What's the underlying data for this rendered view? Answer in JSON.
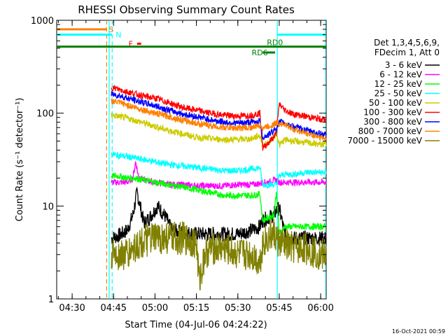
{
  "chart_data": {
    "type": "line",
    "title": "RHESSI Observing Summary Count Rates",
    "xlabel": "Start Time (04-Jul-06 04:24:22)",
    "ylabel": "Count Rate (s⁻¹ detector⁻¹)",
    "xlim_minutes": [
      264.4,
      362.0
    ],
    "x_ticks": [
      {
        "label": "04:30",
        "value": 270
      },
      {
        "label": "04:45",
        "value": 285
      },
      {
        "label": "05:00",
        "value": 300
      },
      {
        "label": "05:15",
        "value": 315
      },
      {
        "label": "05:30",
        "value": 330
      },
      {
        "label": "05:45",
        "value": 345
      },
      {
        "label": "06:00",
        "value": 360
      }
    ],
    "ylim": [
      1,
      1000
    ],
    "yscale": "log",
    "y_ticks": [
      {
        "label": "1",
        "value": 1
      },
      {
        "label": "10",
        "value": 10
      },
      {
        "label": "100",
        "value": 100
      },
      {
        "label": "1000",
        "value": 1000
      }
    ],
    "legend_header": [
      "Det 1,3,4,5,6,9,",
      "FDecim 1, Att 0"
    ],
    "legend_position": "right",
    "series": [
      {
        "name": "3 - 6 keV",
        "color": "#000000",
        "x": [
          284.2,
          287,
          290,
          292,
          293.5,
          295,
          296,
          298,
          301,
          304,
          306,
          310,
          315,
          320,
          325,
          330,
          335,
          338,
          339,
          341,
          343,
          344,
          345,
          347,
          350,
          355,
          360,
          362
        ],
        "y": [
          4.5,
          4.8,
          5.5,
          8,
          14,
          9,
          6.5,
          7.5,
          10,
          7.5,
          5.5,
          5.2,
          5,
          5,
          5,
          5,
          5.5,
          6,
          7,
          7.5,
          8,
          9,
          9.5,
          5,
          4.5,
          4.5,
          4.5,
          4.5
        ]
      },
      {
        "name": "6 - 12 keV",
        "color": "#ff00ff",
        "x": [
          284.2,
          287,
          290,
          292,
          293,
          294,
          296,
          300,
          305,
          310,
          315,
          320,
          325,
          330,
          335,
          338,
          339,
          341,
          343,
          344,
          345,
          347,
          350,
          355,
          360,
          362
        ],
        "y": [
          18,
          18,
          18,
          20,
          30,
          21,
          19,
          18,
          17,
          17,
          16.5,
          16.5,
          16.5,
          17,
          17,
          17.5,
          18,
          18,
          19,
          19,
          18,
          18,
          18,
          18,
          18,
          18
        ]
      },
      {
        "name": "12 - 25 keV",
        "color": "#00ff00",
        "x": [
          284.2,
          287,
          290,
          293,
          296,
          300,
          305,
          310,
          315,
          320,
          325,
          330,
          335,
          338,
          339,
          341,
          343,
          344,
          345,
          347,
          350,
          355,
          360,
          362
        ],
        "y": [
          21,
          21,
          20,
          20,
          19,
          18,
          17,
          16,
          15,
          14,
          13,
          13,
          13,
          13.5,
          7,
          7.5,
          8,
          14,
          5,
          6,
          6,
          6,
          6,
          6
        ]
      },
      {
        "name": "25 - 50 keV",
        "color": "#00ffff",
        "x": [
          284.2,
          287,
          290,
          295,
          300,
          305,
          310,
          315,
          320,
          325,
          330,
          335,
          338,
          339,
          341,
          343,
          344,
          345,
          347,
          350,
          355,
          360,
          362
        ],
        "y": [
          36,
          35,
          34,
          32,
          30,
          28,
          27,
          26,
          25,
          24,
          24,
          25,
          26,
          17,
          17,
          17,
          17,
          21,
          22,
          22,
          23,
          23,
          23
        ]
      },
      {
        "name": "50 - 100 keV",
        "color": "#cccc00",
        "x": [
          284.2,
          287,
          290,
          295,
          300,
          305,
          310,
          315,
          320,
          325,
          330,
          335,
          338,
          339,
          341,
          343,
          344,
          345,
          347,
          350,
          355,
          360,
          362
        ],
        "y": [
          95,
          92,
          88,
          80,
          72,
          65,
          60,
          55,
          53,
          52,
          52,
          53,
          58,
          45,
          48,
          55,
          62,
          45,
          52,
          50,
          48,
          46,
          46
        ]
      },
      {
        "name": "100 - 300 keV",
        "color": "#ff0000",
        "x": [
          284.2,
          287,
          290,
          295,
          300,
          305,
          310,
          315,
          320,
          325,
          330,
          335,
          338,
          339,
          341,
          343,
          344,
          345,
          347,
          350,
          355,
          360,
          362
        ],
        "y": [
          190,
          180,
          170,
          155,
          145,
          130,
          115,
          108,
          100,
          95,
          93,
          95,
          100,
          42,
          48,
          55,
          62,
          125,
          108,
          98,
          92,
          86,
          85
        ]
      },
      {
        "name": "300 - 800 keV",
        "color": "#0000ff",
        "x": [
          284.2,
          287,
          290,
          295,
          300,
          305,
          310,
          315,
          320,
          325,
          330,
          335,
          338,
          339,
          341,
          343,
          344,
          345,
          347,
          350,
          355,
          360,
          362
        ],
        "y": [
          160,
          155,
          145,
          132,
          120,
          108,
          98,
          92,
          85,
          80,
          78,
          80,
          82,
          55,
          58,
          65,
          70,
          80,
          78,
          72,
          65,
          60,
          58
        ]
      },
      {
        "name": "800 - 7000 keV",
        "color": "#ff8000",
        "x": [
          284.2,
          287,
          290,
          295,
          300,
          305,
          310,
          315,
          320,
          325,
          330,
          335,
          338,
          339,
          341,
          343,
          344,
          345,
          347,
          350,
          355,
          360,
          362
        ],
        "y": [
          135,
          130,
          122,
          110,
          100,
          92,
          84,
          78,
          73,
          70,
          69,
          70,
          74,
          70,
          72,
          76,
          78,
          78,
          75,
          68,
          60,
          55,
          52
        ]
      },
      {
        "name": "7000 - 15000 keV",
        "color": "#808000",
        "x": [
          284.2,
          287,
          290,
          292,
          295,
          300,
          305,
          310,
          315,
          316,
          318,
          320,
          325,
          330,
          335,
          338,
          339,
          341,
          343,
          344,
          345,
          347,
          350,
          355,
          360,
          362
        ],
        "y": [
          3,
          3,
          3,
          3.5,
          4,
          4.5,
          4.5,
          4.5,
          4,
          1.5,
          3,
          3.5,
          3.5,
          3,
          3,
          2.5,
          4,
          4.5,
          5,
          4.5,
          4,
          3.8,
          3.5,
          3.5,
          3,
          3
        ]
      }
    ],
    "annotations": {
      "S": {
        "label": "S",
        "color": "#ff8000",
        "x_range": [
          264.4,
          282.5
        ],
        "y": 800
      },
      "N": {
        "label": "N",
        "color": "#00ffff",
        "x_ranges": [
          [
            264.4,
            284.5
          ],
          [
            344.3,
            362
          ]
        ],
        "y": 700
      },
      "F": {
        "label": "F",
        "color": "#ff0000",
        "x_range": [
          293.5,
          295.0
        ],
        "y": 560
      },
      "RD0": {
        "label": "RD0",
        "color": "#008000",
        "x_range": [
          264.4,
          362
        ],
        "y": 520
      },
      "RD6": {
        "label": "RD6",
        "color": "#008000",
        "x_range": [
          339,
          343.5
        ],
        "y": 450
      }
    },
    "vertical_markers": [
      {
        "x": 282.5,
        "color": "#ff8000",
        "style": "dashed"
      },
      {
        "x": 284.5,
        "color": "#00ffff",
        "style": "dashed"
      },
      {
        "x": 283.4,
        "color": "#00ffff",
        "style": "solid"
      },
      {
        "x": 344.3,
        "color": "#00ffff",
        "style": "solid"
      },
      {
        "x": 361.8,
        "color": "#00ffff",
        "style": "dashed"
      }
    ],
    "timestamp": "16-Oct-2021 00:59"
  }
}
